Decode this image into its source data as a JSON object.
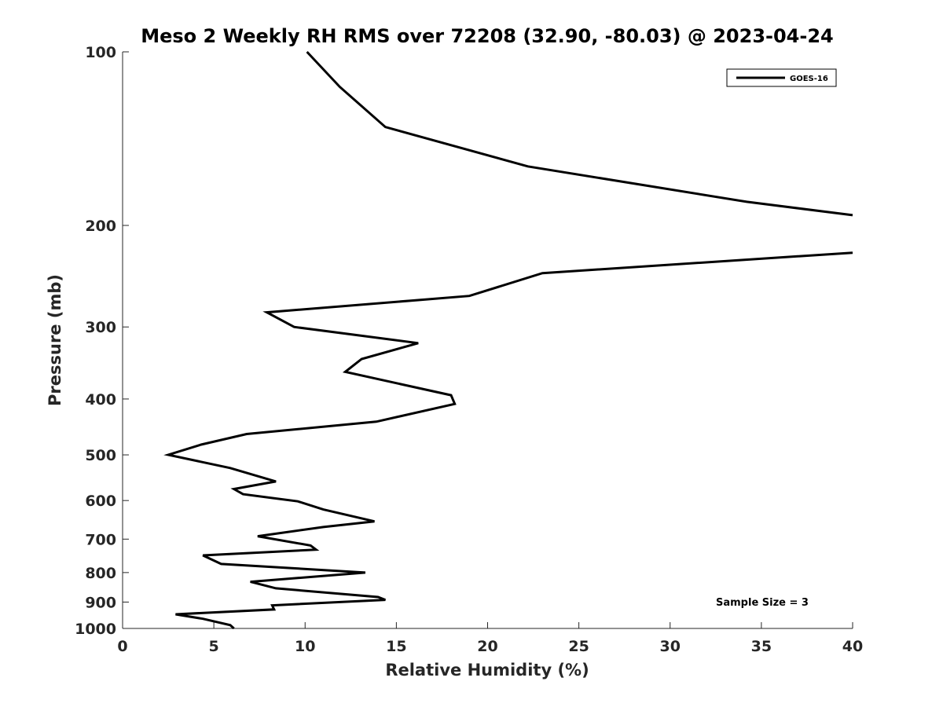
{
  "chart_data": {
    "type": "line",
    "title": "Meso 2 Weekly RH RMS over 72208 (32.90, -80.03) @ 2023-04-24",
    "xlabel": "Relative Humidity (%)",
    "ylabel": "Pressure (mb)",
    "xlim": [
      0,
      40
    ],
    "ylim": [
      1000,
      100
    ],
    "yscale": "log",
    "x_ticks": [
      0,
      5,
      10,
      15,
      20,
      25,
      30,
      35,
      40
    ],
    "x_tick_labels": [
      "0",
      "5",
      "10",
      "15",
      "20",
      "25",
      "30",
      "35",
      "40"
    ],
    "y_ticks": [
      100,
      200,
      300,
      400,
      500,
      600,
      700,
      800,
      900,
      1000
    ],
    "y_tick_labels": [
      "100",
      "200",
      "300",
      "400",
      "500",
      "600",
      "700",
      "800",
      "900",
      "1000"
    ],
    "grid": false,
    "legend_position": "top-right",
    "series": [
      {
        "name": "GOES-16",
        "color": "#000000",
        "x": [
          10.1,
          11.9,
          14.4,
          22.2,
          34.2,
          40.0,
          null,
          40.0,
          23.0,
          19.0,
          7.9,
          9.4,
          16.2,
          13.1,
          12.2,
          18.0,
          18.2,
          13.9,
          6.8,
          4.3,
          2.5,
          5.9,
          8.4,
          6.1,
          6.6,
          9.6,
          11.0,
          13.8,
          11.0,
          7.4,
          10.3,
          10.6,
          4.4,
          5.4,
          13.3,
          7.0,
          8.4,
          14.0,
          14.4,
          8.2,
          8.3,
          2.9,
          4.4,
          5.9,
          6.1
        ],
        "y": [
          100,
          115,
          135,
          158,
          182,
          192,
          null,
          223,
          242,
          265,
          283,
          300,
          320,
          341,
          359,
          394,
          408,
          438,
          460,
          480,
          500,
          527,
          556,
          573,
          585,
          602,
          622,
          652,
          667,
          692,
          718,
          730,
          747,
          773,
          800,
          830,
          852,
          882,
          892,
          912,
          927,
          945,
          962,
          987,
          1000
        ]
      }
    ],
    "annotations": [
      "Sample Size = 3"
    ]
  }
}
